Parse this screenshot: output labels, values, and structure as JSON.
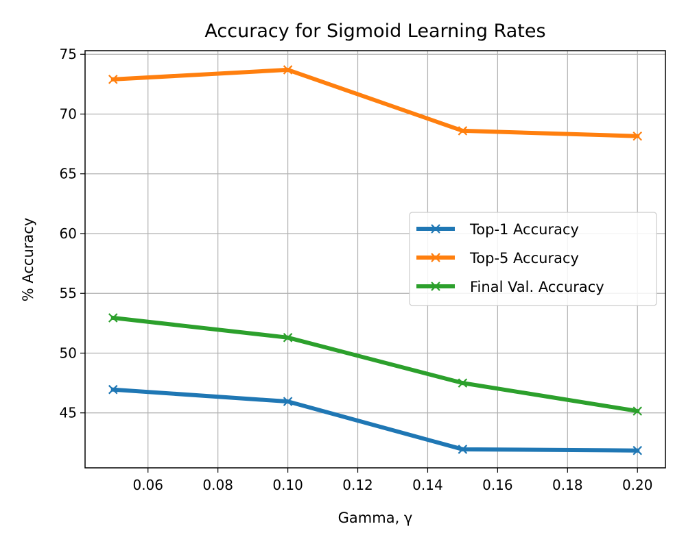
{
  "chart_data": {
    "type": "line",
    "title": "Accuracy for Sigmoid Learning Rates",
    "xlabel": "Gamma, γ",
    "ylabel": "% Accuracy",
    "xlim": [
      0.042,
      0.208
    ],
    "ylim": [
      40.4,
      75.3
    ],
    "xticks": [
      0.06,
      0.08,
      0.1,
      0.12,
      0.14,
      0.16,
      0.18,
      0.2
    ],
    "xtick_labels": [
      "0.06",
      "0.08",
      "0.10",
      "0.12",
      "0.14",
      "0.16",
      "0.18",
      "0.20"
    ],
    "yticks": [
      45,
      50,
      55,
      60,
      65,
      70,
      75
    ],
    "ytick_labels": [
      "45",
      "50",
      "55",
      "60",
      "65",
      "70",
      "75"
    ],
    "grid": true,
    "legend_position": "center-right",
    "x": [
      0.05,
      0.1,
      0.15,
      0.2
    ],
    "series": [
      {
        "name": "Top-1 Accuracy",
        "color": "#1f77b4",
        "marker": "x",
        "values": [
          46.95,
          45.95,
          41.95,
          41.85
        ]
      },
      {
        "name": "Top-5 Accuracy",
        "color": "#ff7f0e",
        "marker": "x",
        "values": [
          72.9,
          73.7,
          68.6,
          68.15
        ]
      },
      {
        "name": "Final Val. Accuracy",
        "color": "#2ca02c",
        "marker": "x",
        "values": [
          52.95,
          51.3,
          47.5,
          45.15
        ]
      }
    ]
  }
}
